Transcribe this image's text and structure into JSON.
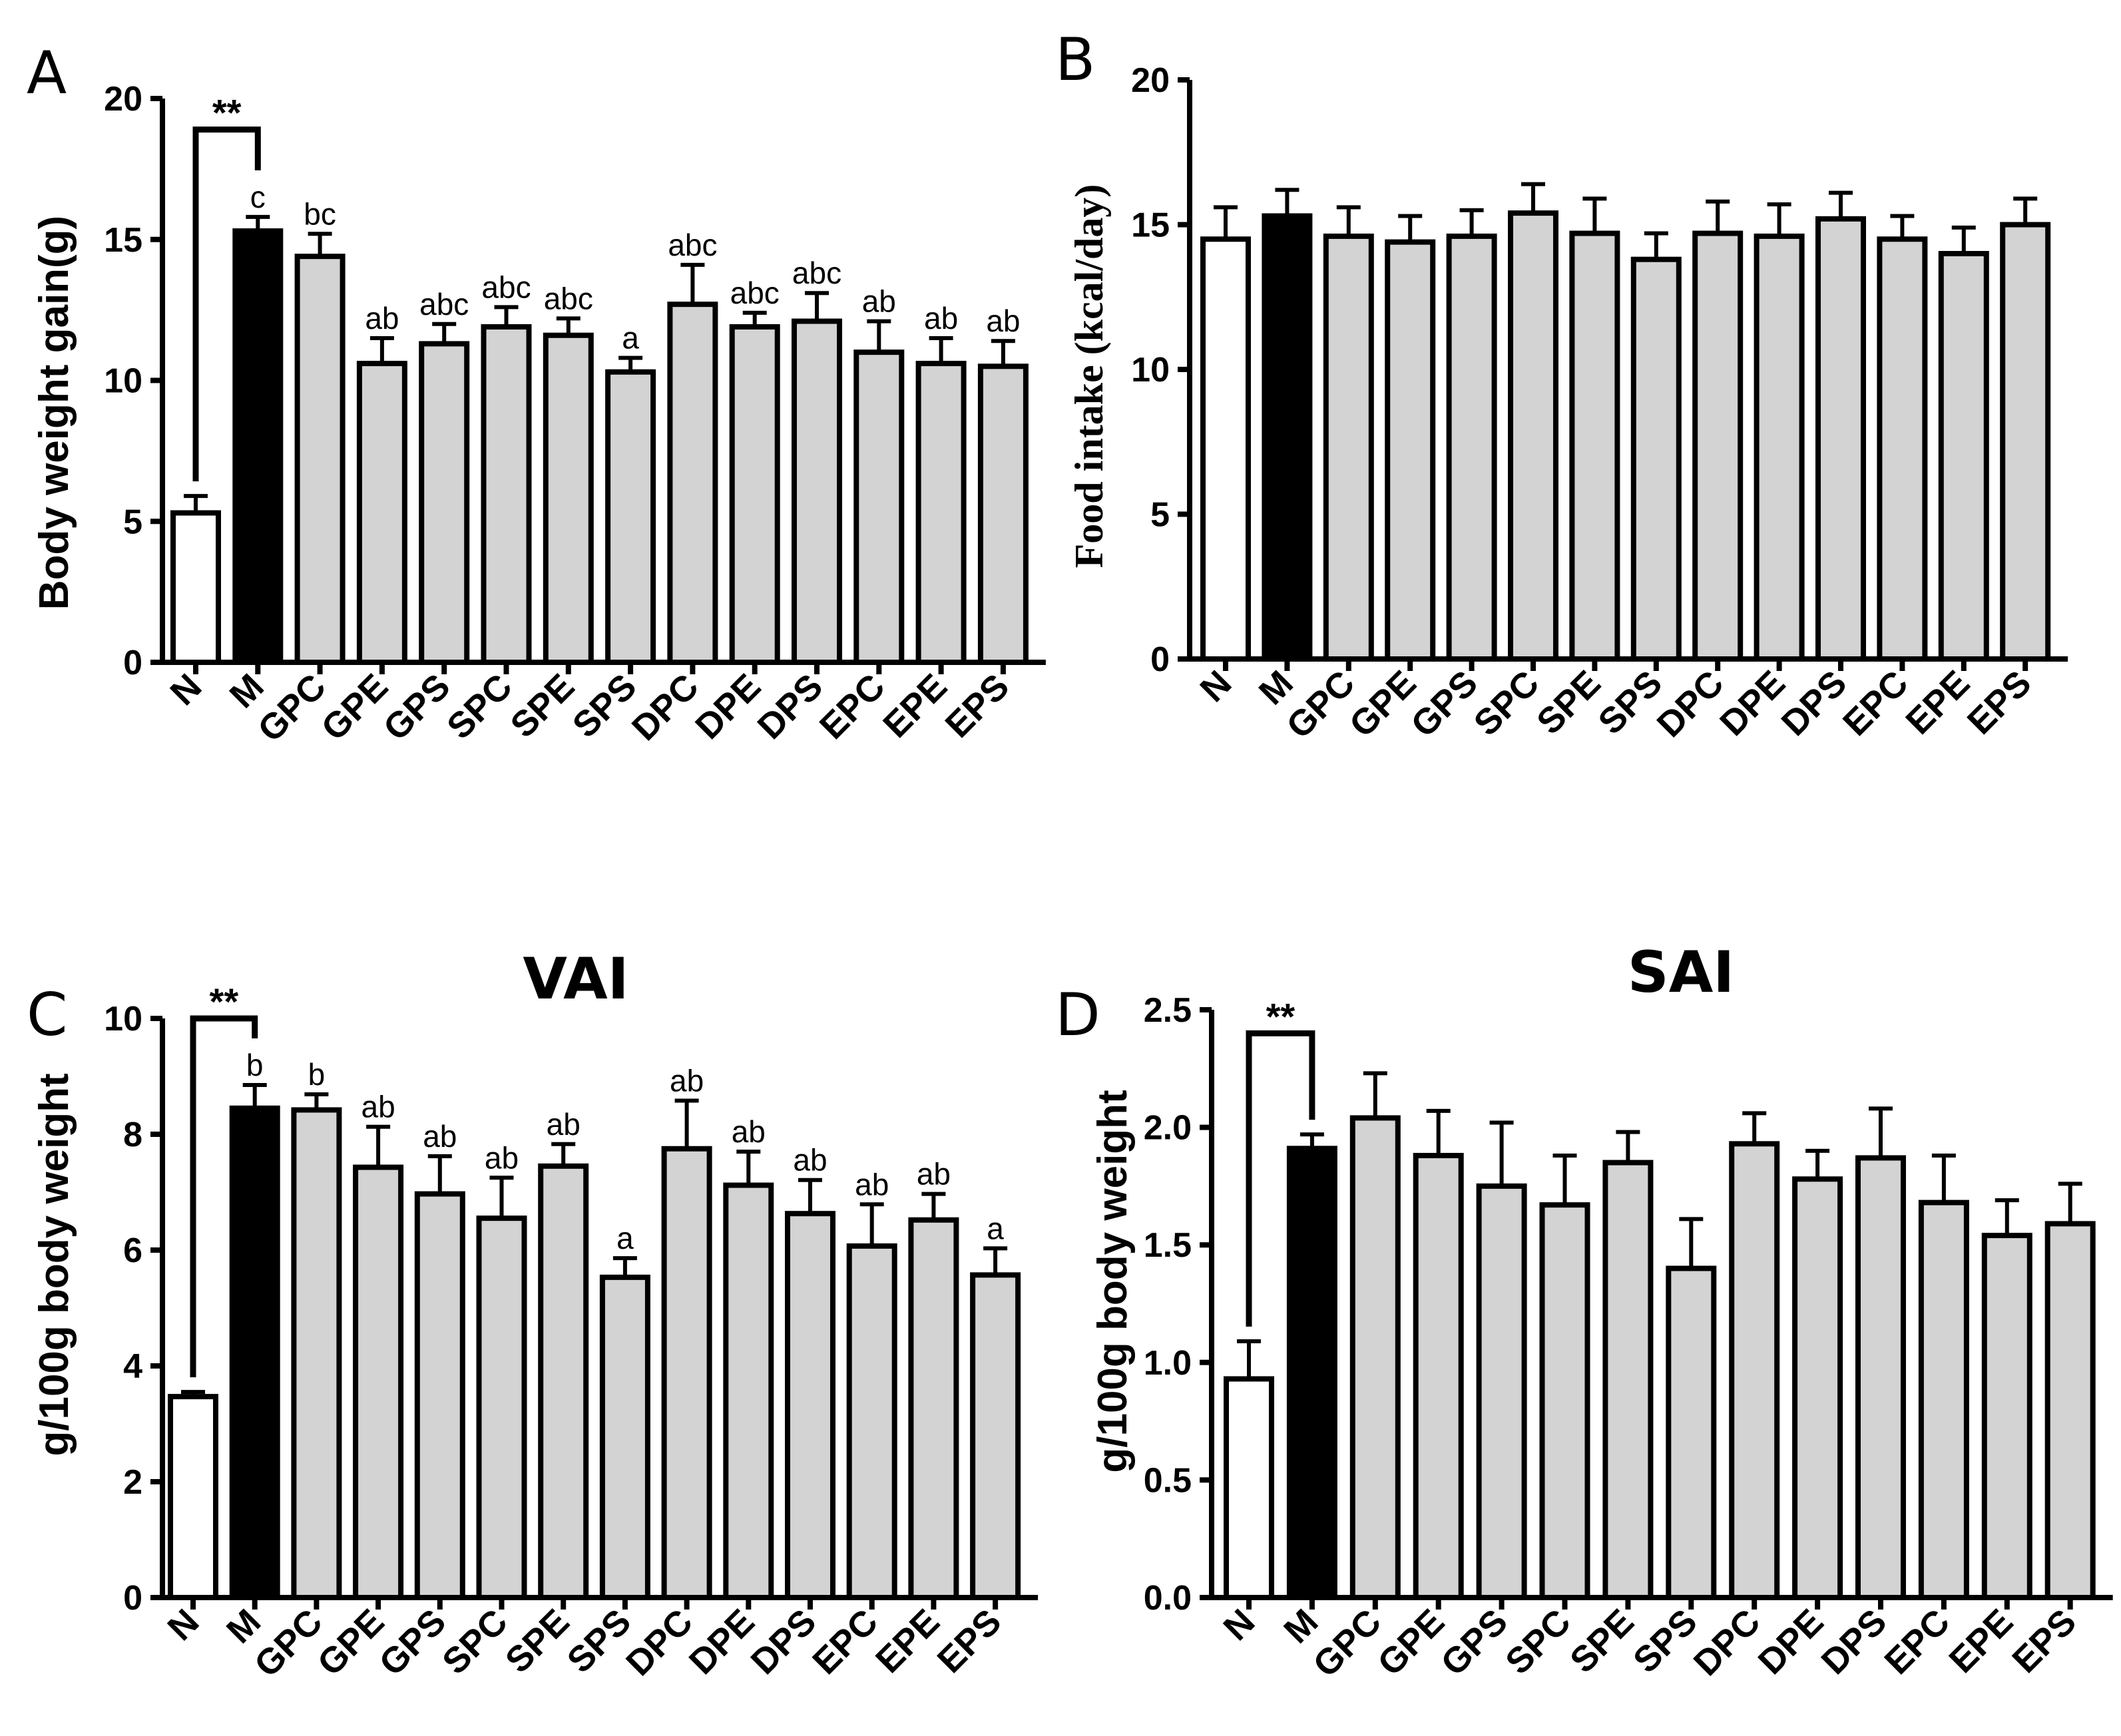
{
  "chart_data": [
    {
      "panel": "A",
      "type": "bar",
      "title": "",
      "ylabel": "Body weight gain(g)",
      "ylim": [
        0,
        20
      ],
      "yticks": [
        0,
        5,
        10,
        15,
        20
      ],
      "categories": [
        "N",
        "M",
        "GPC",
        "GPE",
        "GPS",
        "SPC",
        "SPE",
        "SPS",
        "DPC",
        "DPE",
        "DPS",
        "EPC",
        "EPE",
        "EPS"
      ],
      "values": [
        5.3,
        15.3,
        14.4,
        10.6,
        11.3,
        11.9,
        11.6,
        10.3,
        12.7,
        11.9,
        12.1,
        11.0,
        10.6,
        10.5
      ],
      "errors": [
        0.6,
        0.5,
        0.8,
        0.9,
        0.7,
        0.7,
        0.6,
        0.5,
        1.4,
        0.5,
        1.0,
        1.1,
        0.9,
        0.9
      ],
      "bar_colors": [
        "#ffffff",
        "#000000",
        "#d3d3d3",
        "#d3d3d3",
        "#d3d3d3",
        "#d3d3d3",
        "#d3d3d3",
        "#d3d3d3",
        "#d3d3d3",
        "#d3d3d3",
        "#d3d3d3",
        "#d3d3d3",
        "#d3d3d3",
        "#d3d3d3"
      ],
      "significance": [
        "",
        "c",
        "bc",
        "ab",
        "abc",
        "abc",
        "abc",
        "a",
        "abc",
        "abc",
        "abc",
        "ab",
        "ab",
        "ab"
      ],
      "bracket": {
        "label": "**",
        "from": "N",
        "to": "M",
        "level": 18.9
      }
    },
    {
      "panel": "B",
      "type": "bar",
      "title": "",
      "ylabel": "Food intake (kcal/day)",
      "ylim": [
        0,
        20
      ],
      "yticks": [
        0,
        5,
        10,
        15,
        20
      ],
      "categories": [
        "N",
        "M",
        "GPC",
        "GPE",
        "GPS",
        "SPC",
        "SPE",
        "SPS",
        "DPC",
        "DPE",
        "DPS",
        "EPC",
        "EPE",
        "EPS"
      ],
      "values": [
        14.5,
        15.3,
        14.6,
        14.4,
        14.6,
        15.4,
        14.7,
        13.8,
        14.7,
        14.6,
        15.2,
        14.5,
        14.0,
        15.0
      ],
      "errors": [
        1.1,
        0.9,
        1.0,
        0.9,
        0.9,
        1.0,
        1.2,
        0.9,
        1.1,
        1.1,
        0.9,
        0.8,
        0.9,
        0.9
      ],
      "bar_colors": [
        "#ffffff",
        "#000000",
        "#d3d3d3",
        "#d3d3d3",
        "#d3d3d3",
        "#d3d3d3",
        "#d3d3d3",
        "#d3d3d3",
        "#d3d3d3",
        "#d3d3d3",
        "#d3d3d3",
        "#d3d3d3",
        "#d3d3d3",
        "#d3d3d3"
      ],
      "significance": [],
      "bracket": null
    },
    {
      "panel": "C",
      "type": "bar",
      "title": "VAI",
      "ylabel": "g/100g body weight",
      "ylim": [
        0,
        10
      ],
      "yticks": [
        0,
        2,
        4,
        6,
        8,
        10
      ],
      "categories": [
        "N",
        "M",
        "GPC",
        "GPE",
        "GPS",
        "SPC",
        "SPE",
        "SPS",
        "DPC",
        "DPE",
        "DPS",
        "EPC",
        "EPE",
        "EPS"
      ],
      "values": [
        3.47,
        8.45,
        8.42,
        7.43,
        6.97,
        6.55,
        7.45,
        5.53,
        7.75,
        7.12,
        6.63,
        6.07,
        6.52,
        5.57
      ],
      "errors": [
        0.08,
        0.4,
        0.27,
        0.7,
        0.65,
        0.7,
        0.38,
        0.33,
        0.83,
        0.58,
        0.58,
        0.72,
        0.45,
        0.46
      ],
      "bar_colors": [
        "#ffffff",
        "#000000",
        "#d3d3d3",
        "#d3d3d3",
        "#d3d3d3",
        "#d3d3d3",
        "#d3d3d3",
        "#d3d3d3",
        "#d3d3d3",
        "#d3d3d3",
        "#d3d3d3",
        "#d3d3d3",
        "#d3d3d3",
        "#d3d3d3"
      ],
      "significance": [
        "",
        "b",
        "b",
        "ab",
        "ab",
        "ab",
        "ab",
        "a",
        "ab",
        "ab",
        "ab",
        "ab",
        "ab",
        "a"
      ],
      "bracket": {
        "label": "**",
        "from": "N",
        "to": "M",
        "level": 10.0
      }
    },
    {
      "panel": "D",
      "type": "bar",
      "title": "SAI",
      "ylabel": "g/100g body weight",
      "ylim": [
        0,
        2.5
      ],
      "yticks": [
        "0.0",
        "0.5",
        "1.0",
        "1.5",
        "2.0",
        "2.5"
      ],
      "categories": [
        "N",
        "M",
        "GPC",
        "GPE",
        "GPS",
        "SPC",
        "SPE",
        "SPS",
        "DPC",
        "DPE",
        "DPS",
        "EPC",
        "EPE",
        "EPS"
      ],
      "values": [
        0.93,
        1.91,
        2.04,
        1.88,
        1.75,
        1.67,
        1.85,
        1.4,
        1.93,
        1.78,
        1.87,
        1.68,
        1.54,
        1.59
      ],
      "errors": [
        0.16,
        0.06,
        0.19,
        0.19,
        0.27,
        0.21,
        0.13,
        0.21,
        0.13,
        0.12,
        0.21,
        0.2,
        0.15,
        0.17
      ],
      "bar_colors": [
        "#ffffff",
        "#000000",
        "#d3d3d3",
        "#d3d3d3",
        "#d3d3d3",
        "#d3d3d3",
        "#d3d3d3",
        "#d3d3d3",
        "#d3d3d3",
        "#d3d3d3",
        "#d3d3d3",
        "#d3d3d3",
        "#d3d3d3",
        "#d3d3d3"
      ],
      "significance": [],
      "bracket": {
        "label": "**",
        "from": "N",
        "to": "M",
        "level": 2.4
      }
    }
  ]
}
